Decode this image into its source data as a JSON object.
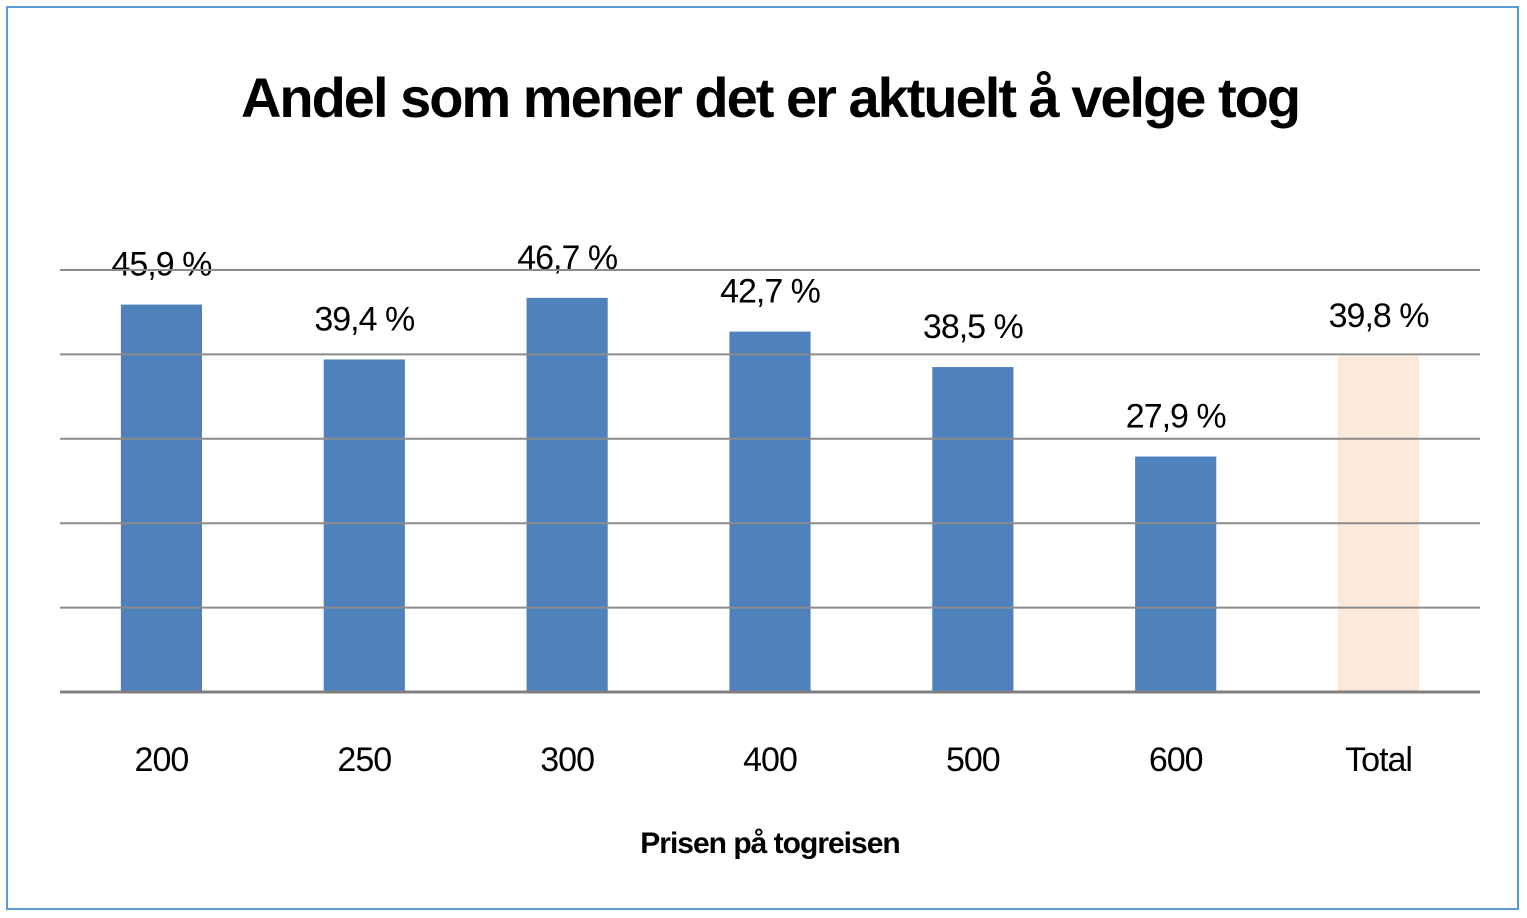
{
  "chart_data": {
    "type": "bar",
    "title": "Andel som mener det er aktuelt å velge tog",
    "x_label": "Prisen på togreisen",
    "categories": [
      "200",
      "250",
      "300",
      "400",
      "500",
      "600",
      "Total"
    ],
    "values": [
      45.9,
      39.4,
      46.7,
      42.7,
      38.5,
      27.9,
      39.8
    ],
    "value_labels": [
      "45,9 %",
      "39,4 %",
      "46,7 %",
      "42,7 %",
      "38,5 %",
      "27,9 %",
      "39,8 %"
    ],
    "colors": [
      "#4f81bd",
      "#4f81bd",
      "#4f81bd",
      "#4f81bd",
      "#4f81bd",
      "#4f81bd",
      "#fde9d9"
    ],
    "ylim": [
      0,
      50
    ],
    "yticks": [
      0,
      10,
      20,
      30,
      40,
      50
    ],
    "grid": true
  }
}
